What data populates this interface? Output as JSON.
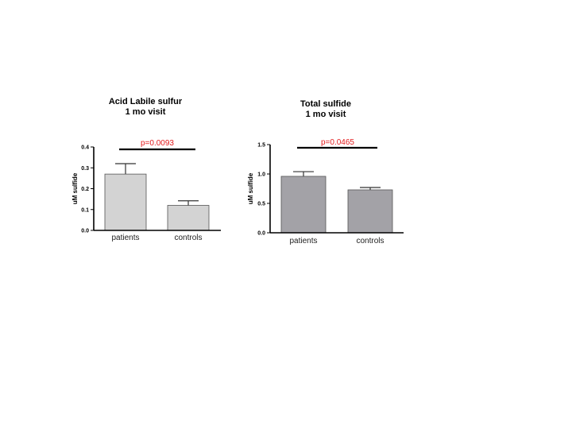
{
  "chart_data": [
    {
      "type": "bar",
      "title": "Acid Labile sulfur",
      "subtitle": "1 mo visit",
      "ylabel": "uM sulfide",
      "xlabel": "",
      "categories": [
        "patients",
        "controls"
      ],
      "values": [
        0.27,
        0.12
      ],
      "errors": [
        0.05,
        0.022
      ],
      "ylim": [
        0,
        0.4
      ],
      "yticks": [
        0.0,
        0.1,
        0.2,
        0.3,
        0.4
      ],
      "ytick_labels": [
        "0.0",
        "0.1",
        "0.2",
        "0.3",
        "0.4"
      ],
      "annotation": "p=0.0093",
      "bar_color": "#d3d3d3",
      "annotation_color": "#e31a1c",
      "grid": false
    },
    {
      "type": "bar",
      "title": "Total sulfide",
      "subtitle": "1 mo visit",
      "ylabel": "uM sulfide",
      "xlabel": "",
      "categories": [
        "patients",
        "controls"
      ],
      "values": [
        0.96,
        0.73
      ],
      "errors": [
        0.08,
        0.04
      ],
      "ylim": [
        0,
        1.5
      ],
      "yticks": [
        0.0,
        0.5,
        1.0,
        1.5
      ],
      "ytick_labels": [
        "0.0",
        "0.5",
        "1.0",
        "1.5"
      ],
      "annotation": "p=0.0465",
      "bar_color": "#a3a2a7",
      "annotation_color": "#e31a1c",
      "grid": false
    }
  ]
}
